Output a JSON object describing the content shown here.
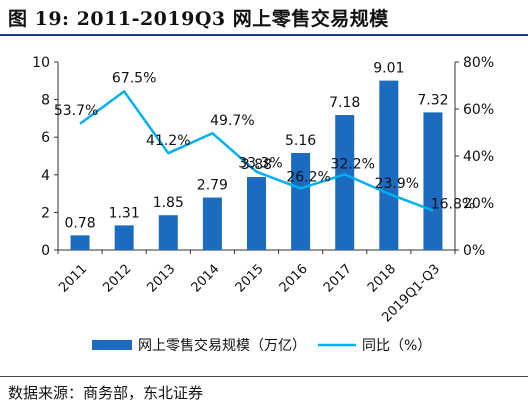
{
  "figure": {
    "title": "图 19:  2011-2019Q3 网上零售交易规模",
    "source": "数据来源：商务部，东北证券"
  },
  "colors": {
    "bar": "#1d6bc1",
    "line": "#00b0f0",
    "axis": "#333333",
    "text": "#111111"
  },
  "chart_data": {
    "type": "bar",
    "categories": [
      "2011",
      "2012",
      "2013",
      "2014",
      "2015",
      "2016",
      "2017",
      "2018",
      "2019Q1-Q3"
    ],
    "series": [
      {
        "name": "网上零售交易规模（万亿）",
        "type": "bar",
        "axis": "left",
        "values": [
          0.78,
          1.31,
          1.85,
          2.79,
          3.88,
          5.16,
          7.18,
          9.01,
          7.32
        ],
        "labels": [
          "0.78",
          "1.31",
          "1.85",
          "2.79",
          "3.88",
          "5.16",
          "7.18",
          "9.01",
          "7.32"
        ]
      },
      {
        "name": "同比（%）",
        "type": "line",
        "axis": "right",
        "values": [
          53.7,
          67.5,
          41.2,
          49.7,
          33.3,
          26.2,
          32.2,
          23.9,
          16.8
        ],
        "labels": [
          "53.7%",
          "67.5%",
          "41.2%",
          "49.7%",
          "33.3%",
          "26.2%",
          "32.2%",
          "23.9%",
          "16.8%"
        ]
      }
    ],
    "y_left": {
      "range": [
        0,
        10
      ],
      "ticks": [
        "0",
        "2",
        "4",
        "6",
        "8",
        "10"
      ]
    },
    "y_right": {
      "range": [
        0,
        80
      ],
      "ticks": [
        "0%",
        "20%",
        "40%",
        "60%",
        "80%"
      ]
    },
    "legend": {
      "position": "bottom"
    },
    "grid": false
  }
}
